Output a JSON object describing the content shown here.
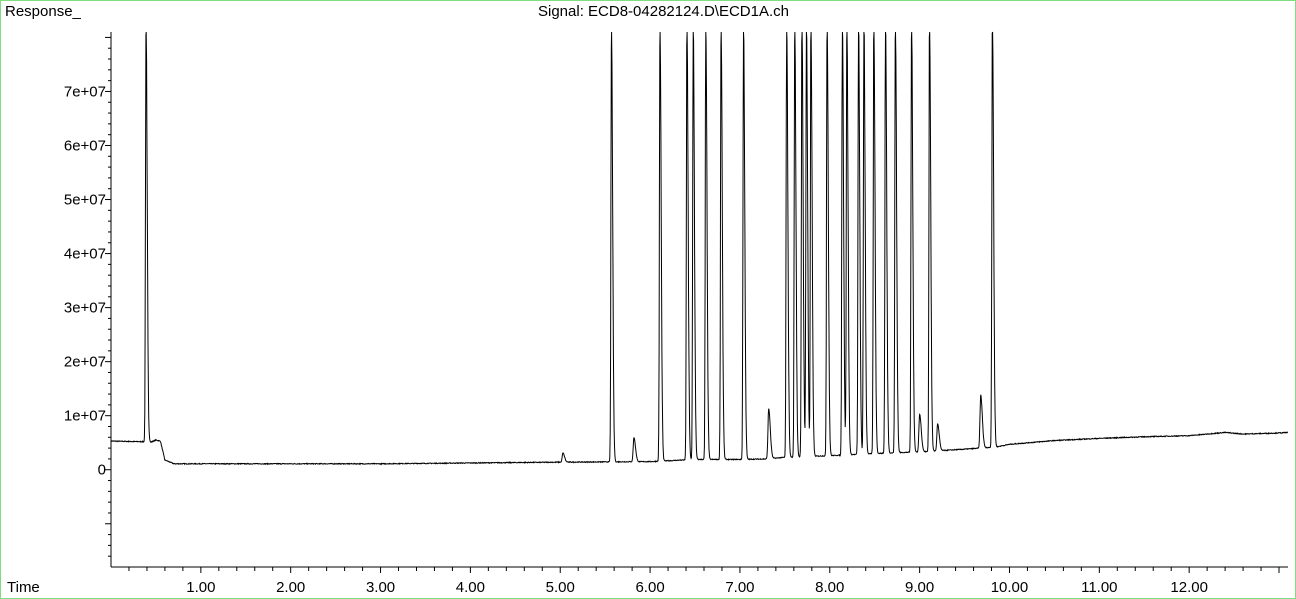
{
  "chart_data": {
    "type": "line",
    "title": "Signal: ECD8-04282124.D\\ECD1A.ch",
    "ylabel": "Response_",
    "xlabel": "Time",
    "xlim": [
      0.0,
      13.1
    ],
    "ylim": [
      -18000000,
      81000000
    ],
    "x_ticks": [
      1,
      2,
      3,
      4,
      5,
      6,
      7,
      8,
      9,
      10,
      11,
      12
    ],
    "x_tick_labels": [
      "1.00",
      "2.00",
      "3.00",
      "4.00",
      "5.00",
      "6.00",
      "7.00",
      "8.00",
      "9.00",
      "10.00",
      "11.00",
      "12.00"
    ],
    "y_ticks": [
      0,
      10000000,
      20000000,
      30000000,
      40000000,
      50000000,
      60000000,
      70000000
    ],
    "y_tick_labels": [
      "0",
      "1e+07",
      "2e+07",
      "3e+07",
      "4e+07",
      "5e+07",
      "6e+07",
      "7e+07"
    ],
    "grid": false,
    "line_color": "#000000",
    "frame_color": "#7fdc7f",
    "baseline": [
      [
        0.0,
        5300000
      ],
      [
        0.3,
        5200000
      ],
      [
        0.38,
        5200000
      ],
      [
        0.4,
        1800000
      ],
      [
        0.43,
        5000000
      ],
      [
        0.5,
        5500000
      ],
      [
        0.55,
        5300000
      ],
      [
        0.6,
        1800000
      ],
      [
        0.7,
        1100000
      ],
      [
        1.0,
        1100000
      ],
      [
        2.0,
        1100000
      ],
      [
        3.0,
        1100000
      ],
      [
        4.0,
        1250000
      ],
      [
        5.0,
        1400000
      ],
      [
        5.5,
        1450000
      ],
      [
        6.0,
        1500000
      ],
      [
        6.5,
        1900000
      ],
      [
        7.0,
        1900000
      ],
      [
        7.3,
        2000000
      ],
      [
        7.5,
        2300000
      ],
      [
        8.0,
        2600000
      ],
      [
        8.5,
        3000000
      ],
      [
        9.0,
        3300000
      ],
      [
        9.5,
        3800000
      ],
      [
        9.85,
        4200000
      ],
      [
        10.0,
        4700000
      ],
      [
        10.5,
        5400000
      ],
      [
        11.0,
        5800000
      ],
      [
        11.5,
        6100000
      ],
      [
        12.0,
        6300000
      ],
      [
        12.4,
        6900000
      ],
      [
        12.6,
        6600000
      ],
      [
        13.0,
        6800000
      ],
      [
        13.1,
        6900000
      ]
    ],
    "peaks": [
      {
        "time": 0.39,
        "height": 81000000
      },
      {
        "time": 5.03,
        "height": 1700000
      },
      {
        "time": 5.57,
        "height": 81000000
      },
      {
        "time": 5.82,
        "height": 4500000
      },
      {
        "time": 6.11,
        "height": 81000000
      },
      {
        "time": 6.41,
        "height": 81000000
      },
      {
        "time": 6.48,
        "height": 81000000
      },
      {
        "time": 6.62,
        "height": 81000000
      },
      {
        "time": 6.79,
        "height": 81000000
      },
      {
        "time": 7.04,
        "height": 81000000
      },
      {
        "time": 7.32,
        "height": 9300000
      },
      {
        "time": 7.52,
        "height": 81000000
      },
      {
        "time": 7.61,
        "height": 81000000
      },
      {
        "time": 7.69,
        "height": 81000000
      },
      {
        "time": 7.74,
        "height": 81000000
      },
      {
        "time": 7.79,
        "height": 81000000
      },
      {
        "time": 7.97,
        "height": 81000000
      },
      {
        "time": 8.14,
        "height": 81000000
      },
      {
        "time": 8.19,
        "height": 81000000
      },
      {
        "time": 8.32,
        "height": 81000000
      },
      {
        "time": 8.38,
        "height": 81000000
      },
      {
        "time": 8.49,
        "height": 81000000
      },
      {
        "time": 8.62,
        "height": 81000000
      },
      {
        "time": 8.73,
        "height": 81000000
      },
      {
        "time": 8.91,
        "height": 81000000
      },
      {
        "time": 9.0,
        "height": 7000000
      },
      {
        "time": 9.11,
        "height": 81000000
      },
      {
        "time": 9.2,
        "height": 5000000
      },
      {
        "time": 9.68,
        "height": 9800000
      },
      {
        "time": 9.81,
        "height": 81000000
      }
    ]
  }
}
